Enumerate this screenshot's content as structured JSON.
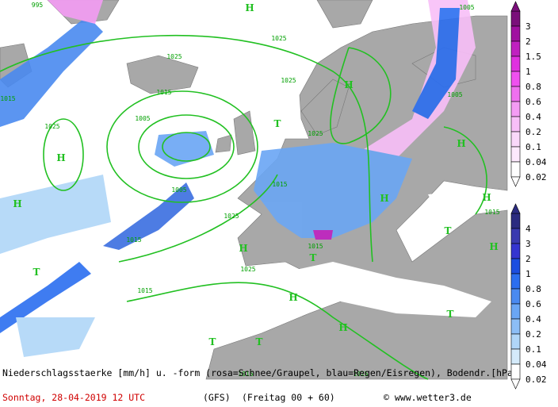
{
  "caption": {
    "line1": "Niederschlagsstaerke [mm/h] u. -form (rosa=Schnee/Graupel, blau=Regen/Eisregen), Bodendr.[hPa]",
    "date": "Sonntag, 28-04-2019  12 UTC",
    "model": "(GFS)",
    "run": "(Freitag 00 + 60)",
    "source": "© www.wetter3.de"
  },
  "snow_scale": {
    "labels": [
      "3",
      "2",
      "1.5",
      "1",
      "0.8",
      "0.6",
      "0.4",
      "0.2",
      "0.1",
      "0.04",
      "0.02"
    ],
    "colors": [
      "#7a0f7a",
      "#a010a0",
      "#c020c0",
      "#e030e0",
      "#f050f0",
      "#f070f0",
      "#f49cf4",
      "#f8bff8",
      "#fad8fa",
      "#fde9fd",
      "#ffffff"
    ]
  },
  "rain_scale": {
    "labels": [
      "4",
      "3",
      "2",
      "1",
      "0.8",
      "0.6",
      "0.4",
      "0.2",
      "0.1",
      "0.04",
      "0.02"
    ],
    "colors": [
      "#2b2b80",
      "#3a3ab0",
      "#3535d0",
      "#1c4ee0",
      "#2b6ef0",
      "#4a8af0",
      "#6aa6f4",
      "#8cbef6",
      "#b0d6f8",
      "#d4eafa",
      "#ffffff"
    ]
  },
  "map": {
    "centers": [
      "H",
      "H",
      "H",
      "H",
      "H",
      "H",
      "H",
      "H",
      "H",
      "H",
      "H",
      "T",
      "T",
      "T",
      "T",
      "T",
      "T",
      "T"
    ],
    "isobars": [
      "995",
      "1025",
      "1025",
      "1025",
      "1025",
      "1025",
      "1025",
      "1025",
      "1025",
      "1015",
      "1015",
      "1015",
      "1015",
      "1015",
      "1015",
      "1005",
      "1005",
      "1005",
      "1005",
      "1015",
      "1015"
    ]
  }
}
